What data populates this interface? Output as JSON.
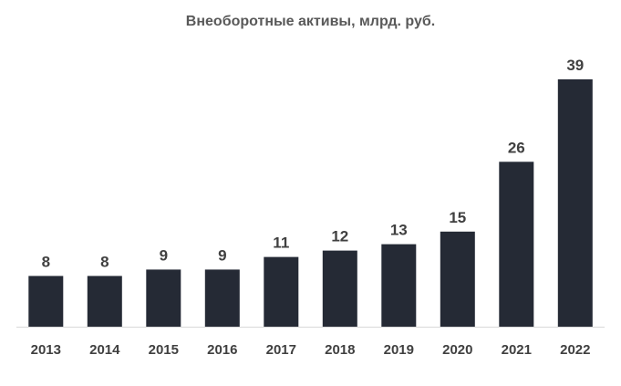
{
  "chart_data": {
    "type": "bar",
    "title": "Внеоборотные активы, млрд. руб.",
    "xlabel": "",
    "ylabel": "",
    "categories": [
      "2013",
      "2014",
      "2015",
      "2016",
      "2017",
      "2018",
      "2019",
      "2020",
      "2021",
      "2022"
    ],
    "values": [
      8,
      8,
      9,
      9,
      11,
      12,
      13,
      15,
      26,
      39
    ],
    "value_labels": [
      "8",
      "8",
      "9",
      "9",
      "11",
      "12",
      "13",
      "15",
      "26",
      "39"
    ],
    "ylim": [
      0,
      40
    ],
    "grid": false,
    "legend": "none",
    "colors": {
      "bar": "#252a35",
      "axis": "#d9d9d9",
      "text": "#404040",
      "title": "#595959"
    }
  }
}
